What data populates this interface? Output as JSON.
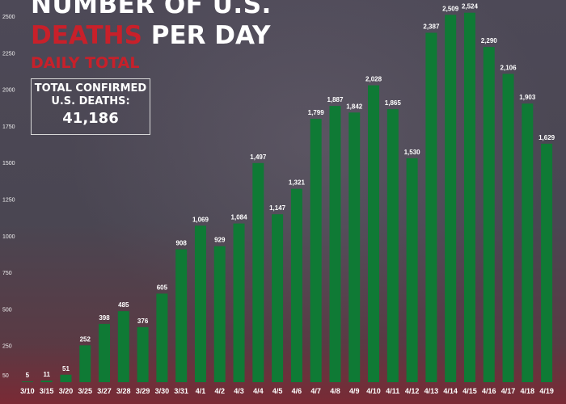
{
  "header": {
    "title_line1": "NUMBER OF U.S.",
    "title_line2_accent": "DEATHS",
    "title_line2_rest": "PER DAY",
    "subtitle": "DAILY TOTAL"
  },
  "totals": {
    "label_line1": "TOTAL CONFIRMED",
    "label_line2": "U.S. DEATHS:",
    "value": "41,186"
  },
  "colors": {
    "bar": "#0f7a35",
    "accent": "#c8202a",
    "background": "#4a4652"
  },
  "chart_data": {
    "type": "bar",
    "title": "NUMBER OF U.S. DEATHS PER DAY",
    "subtitle": "DAILY TOTAL",
    "categories": [
      "3/10",
      "3/15",
      "3/20",
      "3/25",
      "3/27",
      "3/28",
      "3/29",
      "3/30",
      "3/31",
      "4/1",
      "4/2",
      "4/3",
      "4/4",
      "4/5",
      "4/6",
      "4/7",
      "4/8",
      "4/9",
      "4/10",
      "4/11",
      "4/12",
      "4/13",
      "4/14",
      "4/15",
      "4/16",
      "4/17",
      "4/18",
      "4/19"
    ],
    "values": [
      5,
      11,
      51,
      252,
      398,
      485,
      376,
      605,
      908,
      1069,
      929,
      1084,
      1497,
      1147,
      1321,
      1799,
      1887,
      1842,
      2028,
      1865,
      1530,
      2387,
      2509,
      2524,
      2290,
      2106,
      1903,
      1629
    ],
    "value_labels": [
      "5",
      "11",
      "51",
      "252",
      "398",
      "485",
      "376",
      "605",
      "908",
      "1,069",
      "929",
      "1,084",
      "1,497",
      "1,147",
      "1,321",
      "1,799",
      "1,887",
      "1,842",
      "2,028",
      "1,865",
      "1,530",
      "2,387",
      "2,509",
      "2,524",
      "2,290",
      "2,106",
      "1,903",
      "1,629"
    ],
    "yticks": [
      50,
      250,
      500,
      750,
      1000,
      1250,
      1500,
      1750,
      2000,
      2250,
      2500
    ],
    "ylim": [
      0,
      2550
    ],
    "grid": false,
    "legend": "none"
  }
}
